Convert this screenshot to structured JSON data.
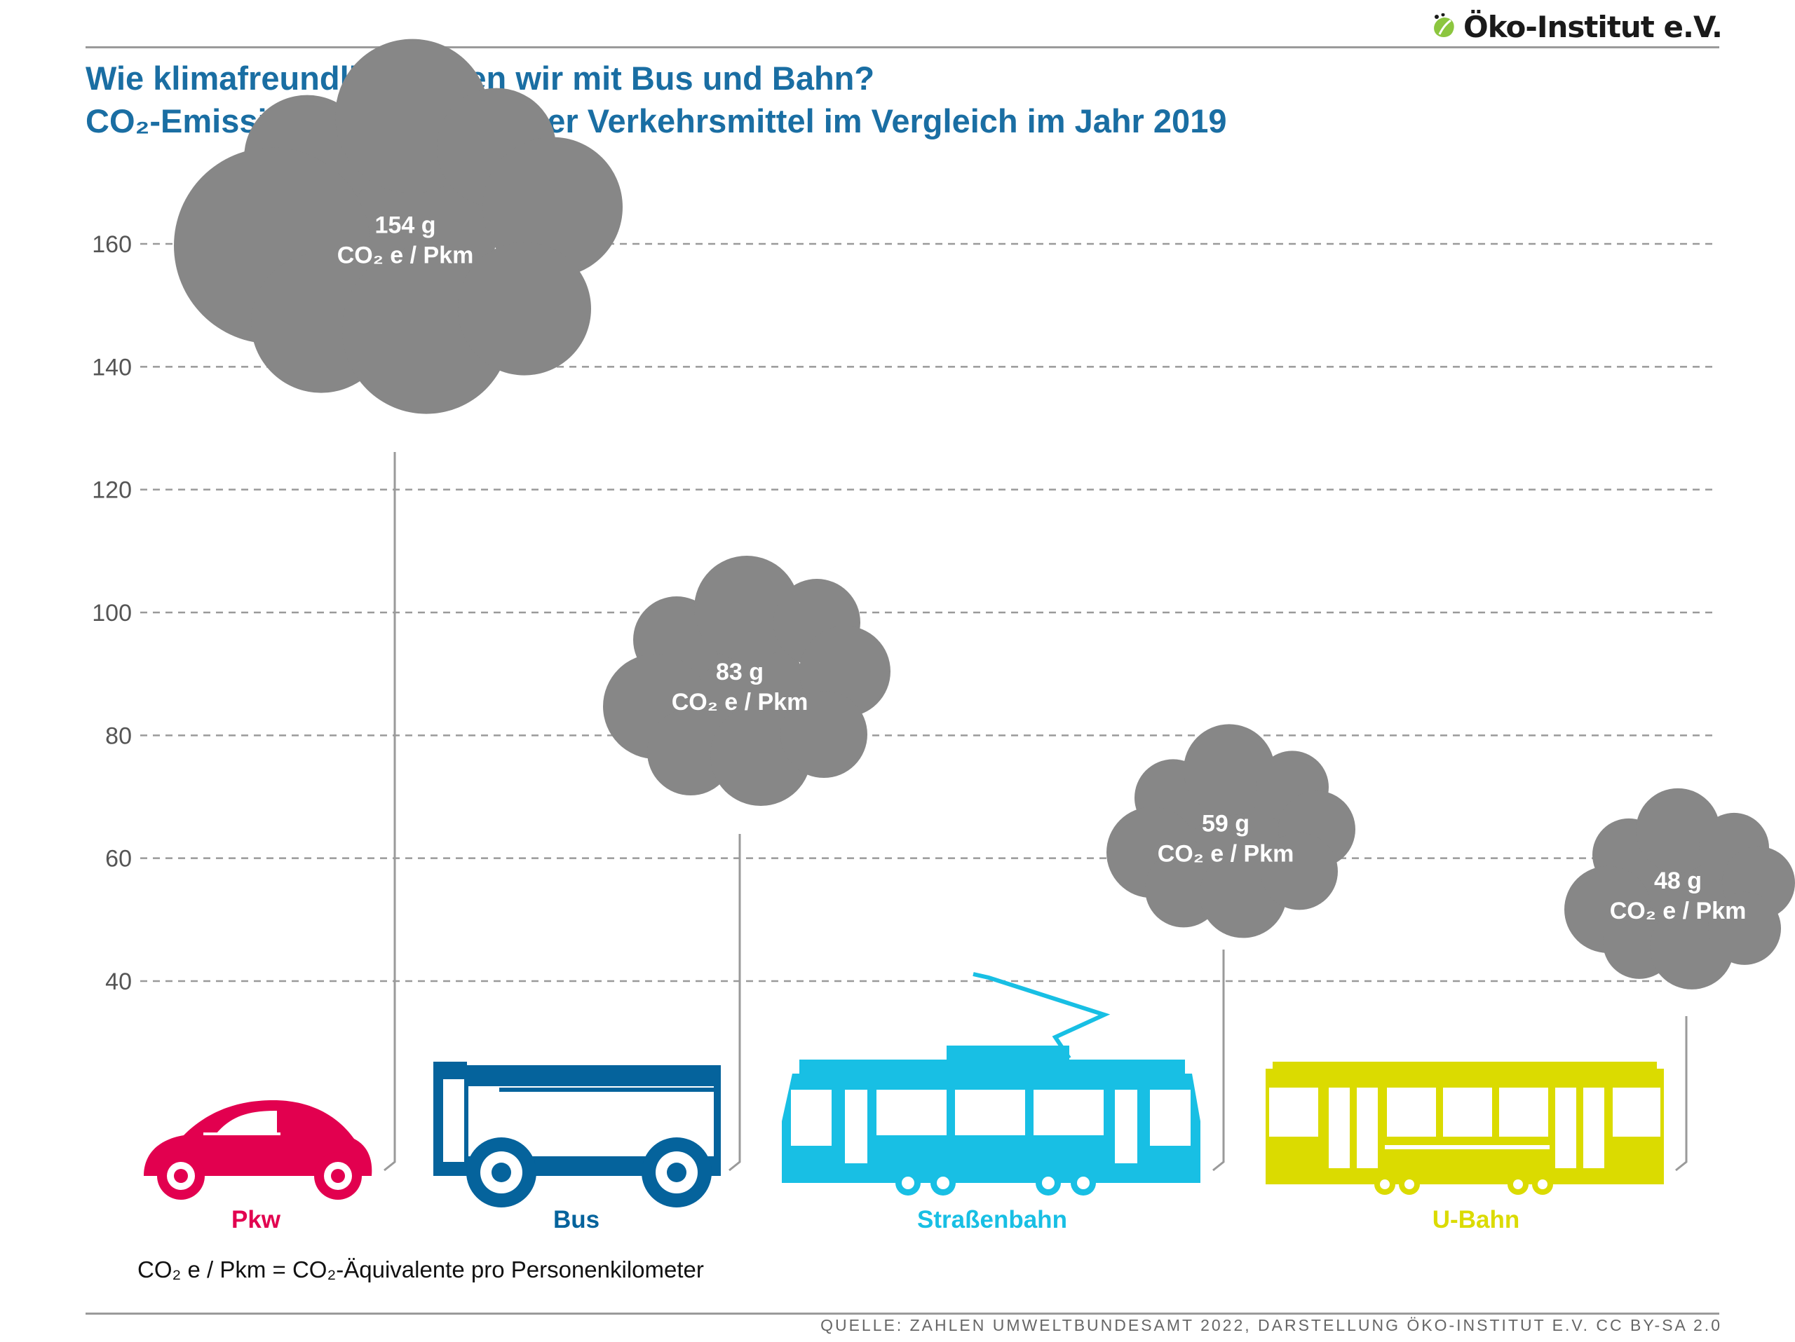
{
  "header": {
    "logo_text": "Öko-Institut e.V.",
    "title": "Wie klimafreundlich fahren wir mit Bus und Bahn?",
    "subtitle": "CO₂-Emissionen verschiedener Verkehrsmittel im Vergleich im Jahr 2019"
  },
  "chart_data": {
    "type": "bar",
    "title": "Wie klimafreundlich fahren wir mit Bus und Bahn?",
    "subtitle": "CO₂-Emissionen verschiedener Verkehrsmittel im Vergleich im Jahr 2019",
    "categories": [
      "Pkw",
      "Bus",
      "Straßenbahn",
      "U-Bahn"
    ],
    "values": [
      154,
      83,
      59,
      48
    ],
    "value_labels": [
      "154 g",
      "83 g",
      "59 g",
      "48 g"
    ],
    "unit_label": "CO₂ e / Pkm",
    "y_ticks": [
      40,
      60,
      80,
      100,
      120,
      140,
      160
    ],
    "ylim": [
      25,
      170
    ],
    "grid": "horizontal dashed",
    "colors": {
      "Pkw": "#e2004f",
      "Bus": "#05639c",
      "Straßenbahn": "#18bfe4",
      "U-Bahn": "#dbdb00",
      "cloud": "#878787",
      "axis_text": "#555555"
    },
    "icons": [
      "car-icon",
      "bus-icon",
      "tram-icon",
      "subway-icon"
    ]
  },
  "footer": {
    "footnote": "CO₂ e / Pkm  =  CO₂-Äquivalente pro Personenkilometer",
    "source": "QUELLE: ZAHLEN UMWELTBUNDESAMT 2022, DARSTELLUNG ÖKO-INSTITUT E.V. CC BY-SA 2.0"
  }
}
